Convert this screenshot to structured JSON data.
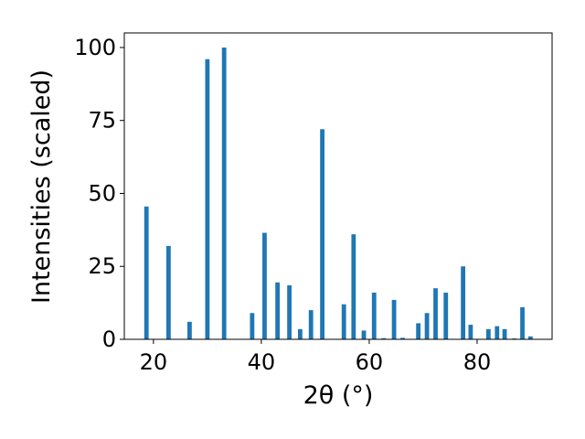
{
  "chart_data": {
    "type": "bar",
    "title": "",
    "xlabel": "2θ (°)",
    "ylabel": "Intensities (scaled)",
    "xlim": [
      14.6,
      93.9
    ],
    "ylim": [
      0,
      105
    ],
    "xticks": [
      20,
      40,
      60,
      80
    ],
    "yticks": [
      0,
      25,
      50,
      75,
      100
    ],
    "grid": false,
    "bar_color": "#1f77b4",
    "x": [
      18.7,
      22.8,
      26.7,
      30.0,
      33.1,
      38.3,
      40.6,
      43.0,
      45.2,
      47.2,
      49.2,
      51.3,
      55.3,
      57.1,
      59.0,
      60.9,
      62.7,
      64.6,
      66.2,
      69.1,
      70.7,
      72.3,
      74.2,
      77.4,
      78.8,
      82.1,
      83.7,
      85.1,
      86.9,
      88.4,
      89.9
    ],
    "values": [
      45.5,
      32,
      6,
      96,
      100,
      9,
      36.5,
      19.5,
      18.5,
      3.5,
      10,
      72,
      12,
      36,
      3,
      16,
      0.4,
      13.5,
      0.5,
      5.5,
      9,
      17.5,
      16,
      25,
      5,
      3.5,
      4.5,
      3.5,
      0.3,
      11,
      1
    ]
  }
}
